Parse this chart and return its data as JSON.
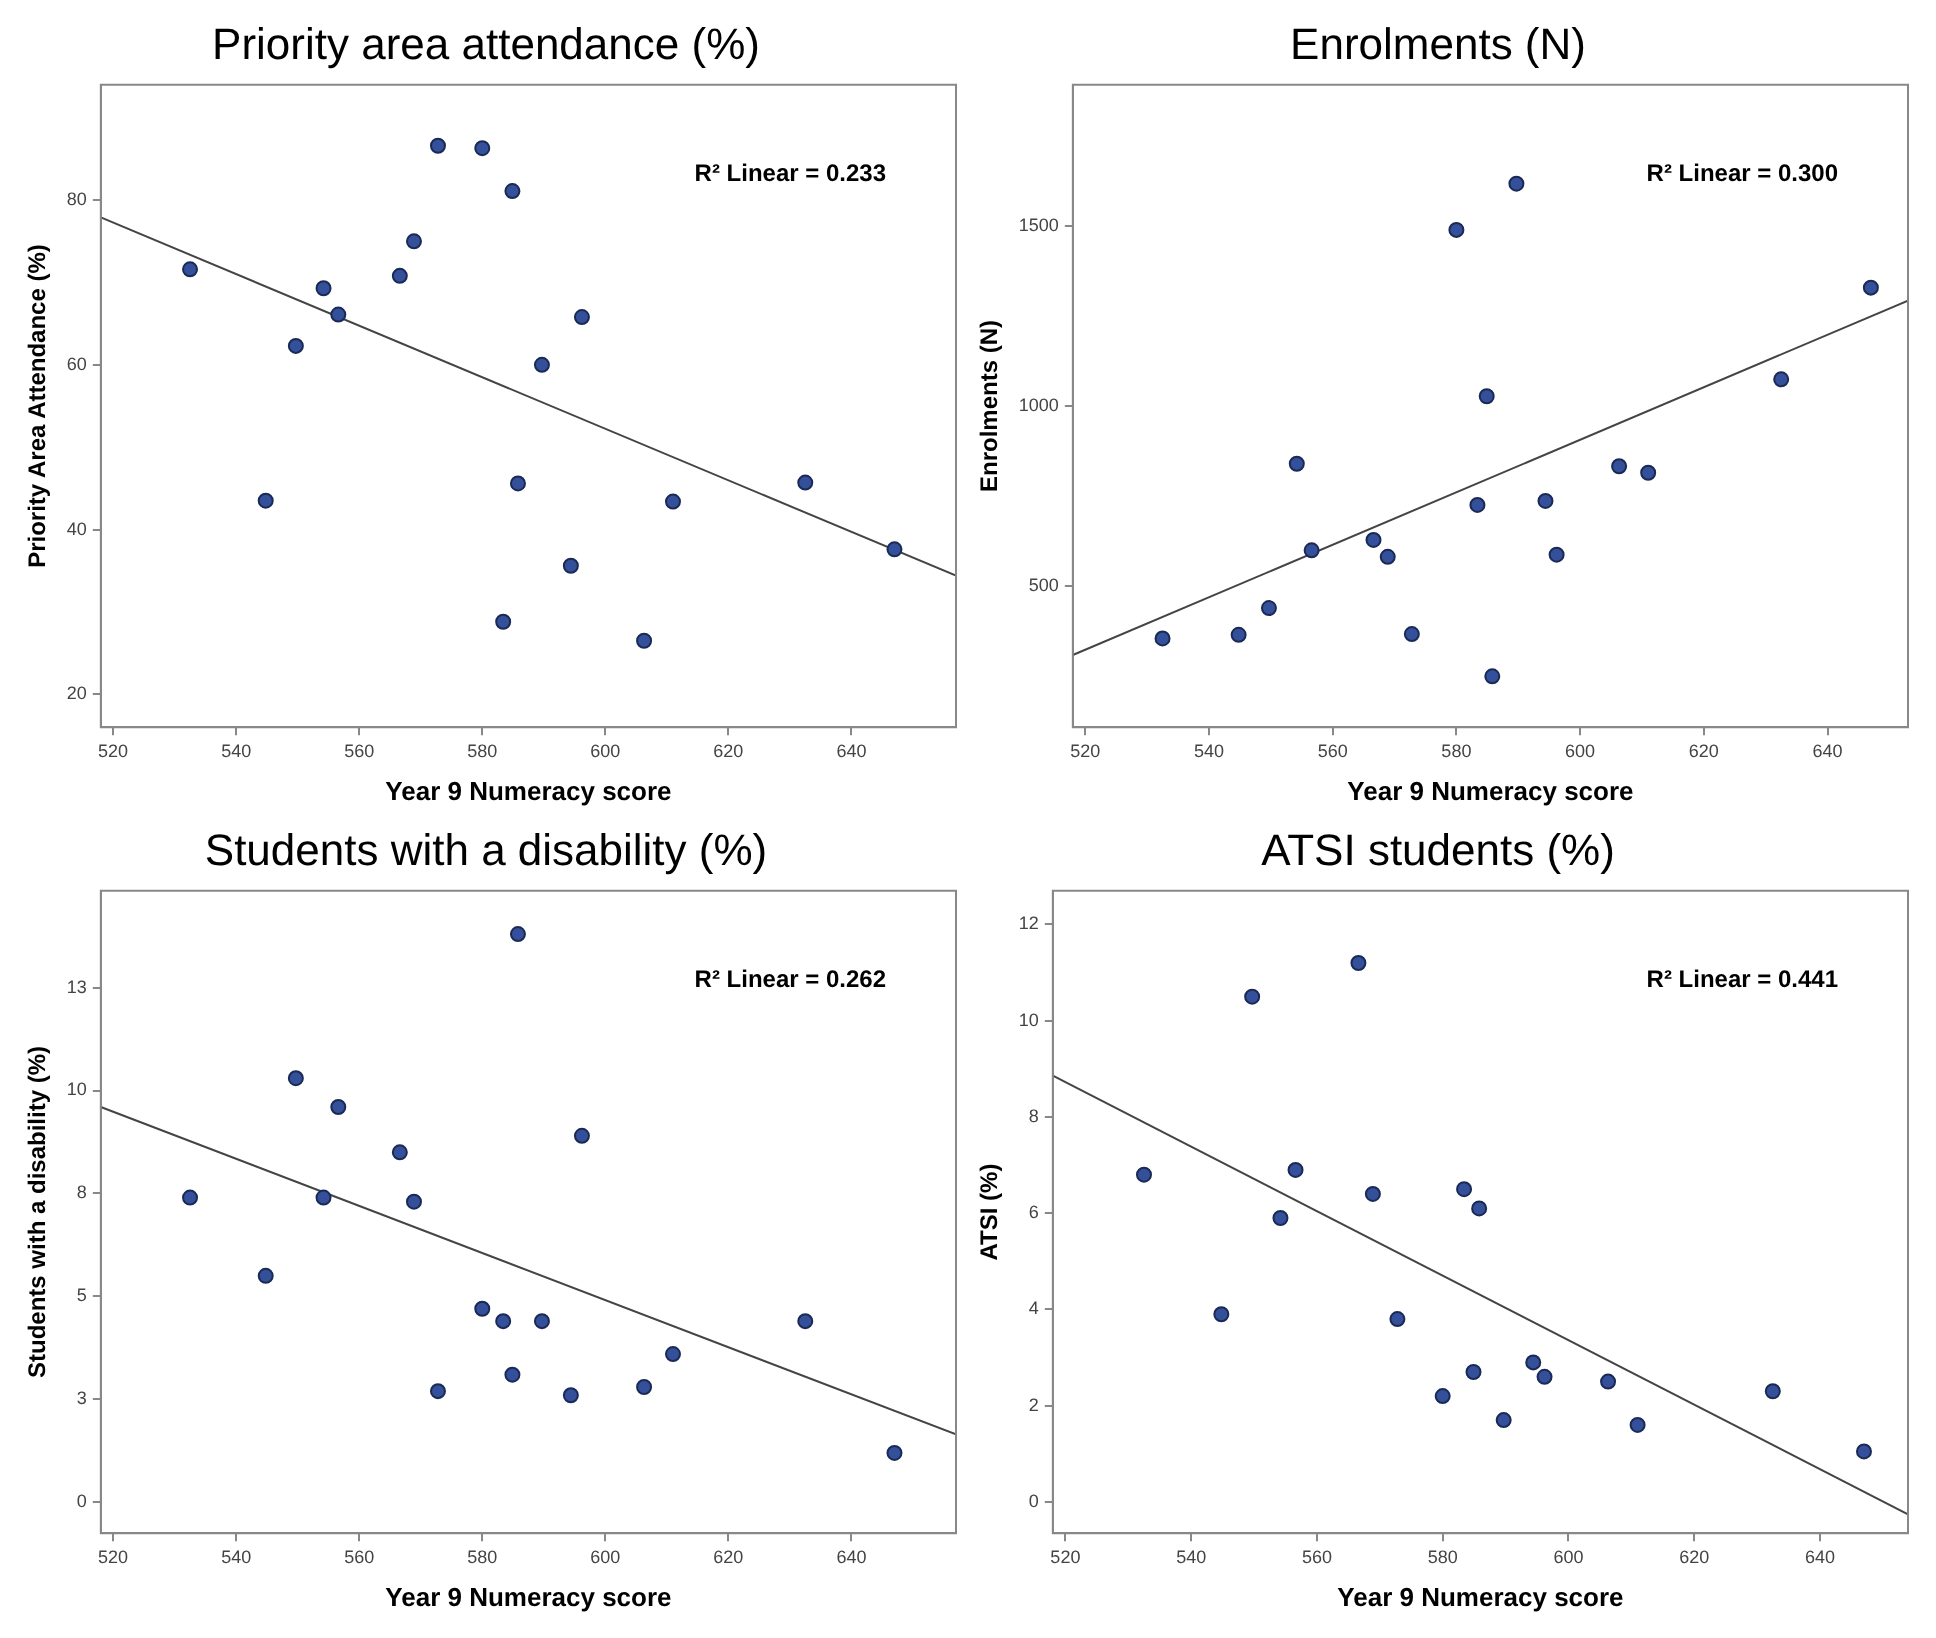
{
  "chart_data": [
    {
      "type": "scatter",
      "title": "Priority area attendance (%)",
      "xlabel": "Year 9 Numeracy score",
      "ylabel": "Priority Area Attendance (%)",
      "annotations": [
        "R² Linear = 0.233"
      ],
      "xlim": [
        518,
        657
      ],
      "ylim": [
        16,
        94
      ],
      "xticks": [
        520,
        540,
        560,
        580,
        600,
        620,
        640
      ],
      "yticks": [
        20,
        40,
        60,
        80
      ],
      "grid": false,
      "legend": false,
      "marker": "circle",
      "x": [
        532.5,
        544.8,
        549.7,
        554.2,
        556.6,
        566.6,
        568.9,
        572.8,
        580.0,
        583.4,
        584.9,
        585.8,
        589.7,
        594.4,
        596.2,
        606.3,
        611.0,
        632.5,
        647.0
      ],
      "series": [
        {
          "color": "#34509b",
          "values": [
            71.6,
            43.5,
            62.3,
            69.3,
            66.1,
            70.8,
            75.0,
            86.6,
            86.3,
            28.8,
            81.1,
            45.6,
            60.0,
            35.6,
            65.8,
            26.5,
            43.4,
            45.7,
            37.6
          ]
        },
        {
          "type": "line",
          "color": "#444444",
          "x": [
            518,
            657
          ],
          "values": [
            77.9,
            34.4
          ],
          "marker": "none"
        }
      ]
    },
    {
      "type": "scatter",
      "title": "Enrolments (N)",
      "xlabel": "Year 9 Numeracy score",
      "ylabel": "Enrolments (N)",
      "annotations": [
        "R² Linear = 0.300"
      ],
      "xlim": [
        518,
        653
      ],
      "ylim": [
        110,
        1890
      ],
      "xticks": [
        520,
        540,
        560,
        580,
        600,
        620,
        640
      ],
      "yticks": [
        500,
        1000,
        1500
      ],
      "grid": false,
      "legend": false,
      "marker": "circle",
      "x": [
        532.5,
        544.8,
        549.7,
        554.2,
        556.6,
        566.6,
        568.9,
        572.8,
        580.0,
        583.4,
        584.9,
        585.8,
        589.7,
        594.4,
        596.2,
        606.3,
        611.0,
        632.5,
        647.0
      ],
      "series": [
        {
          "color": "#34509b",
          "values": [
            356,
            366,
            440,
            840,
            600,
            629,
            582,
            368,
            1488,
            726,
            1027,
            251,
            1616,
            737,
            588,
            833,
            815,
            1074,
            1328
          ]
        },
        {
          "type": "line",
          "color": "#444444",
          "x": [
            518,
            653
          ],
          "values": [
            310,
            1292
          ],
          "marker": "none"
        }
      ]
    },
    {
      "type": "scatter",
      "title": "Students with a disability (%)",
      "xlabel": "Year 9 Numeracy score",
      "ylabel": "Students with a disability (%)",
      "annotations": [
        "R² Linear = 0.262"
      ],
      "xlim": [
        518,
        657
      ],
      "ylim": [
        -0.75,
        14.85
      ],
      "xticks": [
        520,
        540,
        560,
        580,
        600,
        620,
        640
      ],
      "yticks": [
        0,
        {
          "value": 2.5,
          "label": "3"
        },
        5,
        {
          "value": 7.5,
          "label": "8"
        },
        10,
        {
          "value": 12.5,
          "label": "13"
        }
      ],
      "grid": false,
      "legend": false,
      "marker": "circle",
      "x": [
        532.5,
        544.8,
        549.7,
        554.2,
        556.6,
        566.6,
        568.9,
        572.8,
        580.0,
        583.4,
        584.9,
        585.8,
        589.7,
        594.4,
        596.2,
        606.3,
        611.0,
        632.5,
        647.0
      ],
      "series": [
        {
          "color": "#34509b",
          "values": [
            7.4,
            5.5,
            10.3,
            7.4,
            9.6,
            8.5,
            7.3,
            2.7,
            4.7,
            4.4,
            3.1,
            13.8,
            4.4,
            2.6,
            8.9,
            2.8,
            3.6,
            4.4,
            1.2
          ]
        },
        {
          "type": "line",
          "color": "#444444",
          "x": [
            518,
            657
          ],
          "values": [
            9.6,
            1.65
          ],
          "marker": "none"
        }
      ]
    },
    {
      "type": "scatter",
      "title": "ATSI students (%)",
      "xlabel": "Year 9 Numeracy score",
      "ylabel": "ATSI (%)",
      "annotations": [
        "R² Linear = 0.441"
      ],
      "xlim": [
        518,
        654
      ],
      "ylim": [
        -0.65,
        12.7
      ],
      "xticks": [
        520,
        540,
        560,
        580,
        600,
        620,
        640
      ],
      "yticks": [
        0,
        2,
        4,
        6,
        8,
        10,
        12
      ],
      "grid": false,
      "legend": false,
      "marker": "circle",
      "x": [
        532.5,
        544.8,
        549.7,
        554.2,
        556.6,
        566.6,
        568.9,
        572.8,
        580.0,
        583.4,
        584.9,
        585.8,
        589.7,
        594.4,
        596.2,
        606.3,
        611.0,
        632.5,
        647.0
      ],
      "series": [
        {
          "color": "#34509b",
          "values": [
            6.8,
            3.9,
            10.5,
            5.9,
            6.9,
            11.2,
            6.4,
            3.8,
            2.2,
            6.5,
            2.7,
            6.1,
            1.7,
            2.9,
            2.6,
            2.5,
            1.6,
            2.3,
            1.05
          ]
        },
        {
          "type": "line",
          "color": "#444444",
          "x": [
            518,
            654
          ],
          "values": [
            8.86,
            -0.26
          ],
          "marker": "none"
        }
      ]
    }
  ]
}
